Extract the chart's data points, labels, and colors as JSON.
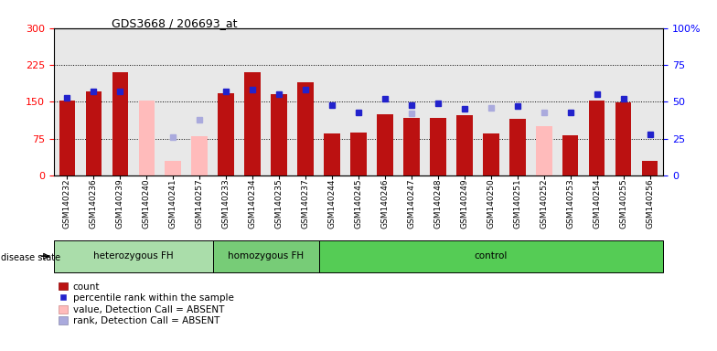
{
  "title": "GDS3668 / 206693_at",
  "samples": [
    "GSM140232",
    "GSM140236",
    "GSM140239",
    "GSM140240",
    "GSM140241",
    "GSM140257",
    "GSM140233",
    "GSM140234",
    "GSM140235",
    "GSM140237",
    "GSM140244",
    "GSM140245",
    "GSM140246",
    "GSM140247",
    "GSM140248",
    "GSM140249",
    "GSM140250",
    "GSM140251",
    "GSM140252",
    "GSM140253",
    "GSM140254",
    "GSM140255",
    "GSM140256"
  ],
  "count_values": [
    152,
    172,
    210,
    null,
    null,
    null,
    168,
    210,
    165,
    190,
    85,
    88,
    125,
    118,
    118,
    122,
    85,
    115,
    null,
    82,
    152,
    148,
    30
  ],
  "count_absent": [
    null,
    null,
    null,
    152,
    30,
    80,
    null,
    null,
    null,
    null,
    null,
    null,
    null,
    null,
    null,
    null,
    null,
    null,
    100,
    null,
    null,
    null,
    null
  ],
  "rank_present": [
    53,
    57,
    57,
    null,
    null,
    null,
    57,
    58,
    55,
    58,
    48,
    43,
    52,
    48,
    49,
    45,
    null,
    47,
    null,
    43,
    55,
    52,
    28
  ],
  "rank_absent": [
    null,
    null,
    null,
    null,
    26,
    38,
    null,
    null,
    null,
    null,
    null,
    null,
    null,
    42,
    null,
    null,
    46,
    null,
    43,
    null,
    null,
    null,
    null
  ],
  "groups": [
    {
      "label": "heterozygous FH",
      "start": 0,
      "end": 6
    },
    {
      "label": "homozygous FH",
      "start": 6,
      "end": 10
    },
    {
      "label": "control",
      "start": 10,
      "end": 23
    }
  ],
  "ylim_left": [
    0,
    300
  ],
  "ylim_right": [
    0,
    100
  ],
  "yticks_left": [
    0,
    75,
    150,
    225,
    300
  ],
  "yticks_right": [
    0,
    25,
    50,
    75,
    100
  ],
  "bar_color_present": "#bb1111",
  "bar_color_absent": "#ffbbbb",
  "dot_color_present": "#2222cc",
  "dot_color_absent": "#aaaadd",
  "group_color_hetero": "#aaddaa",
  "group_color_homo": "#77cc77",
  "group_color_control": "#55cc55",
  "bg_color": "#e8e8e8",
  "legend_labels": [
    "count",
    "percentile rank within the sample",
    "value, Detection Call = ABSENT",
    "rank, Detection Call = ABSENT"
  ]
}
